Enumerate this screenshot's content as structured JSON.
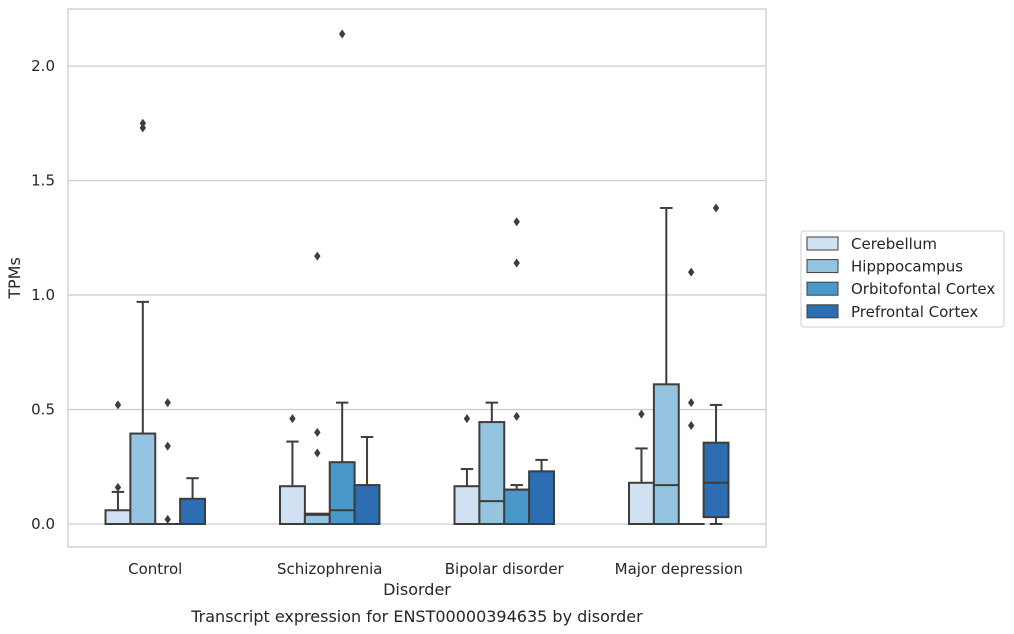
{
  "chart_data": {
    "type": "box",
    "title": "",
    "caption": "Transcript expression for ENST00000394635 by disorder",
    "xlabel": "Disorder",
    "ylabel": "TPMs",
    "ylim": [
      -0.1,
      2.25
    ],
    "yticks": [
      "0.0",
      "0.5",
      "1.0",
      "1.5",
      "2.0"
    ],
    "ytick_values": [
      0.0,
      0.5,
      1.0,
      1.5,
      2.0
    ],
    "grid": true,
    "legend_position": "right",
    "categories": [
      "Control",
      "Schizophrenia",
      "Bipolar disorder",
      "Major depression"
    ],
    "series": [
      {
        "name": "Cerebellum",
        "color": "#d0e1f2",
        "boxes": [
          {
            "q1": 0.0,
            "median": 0.0,
            "q3": 0.06,
            "whisker_low": 0.0,
            "whisker_high": 0.14,
            "outliers": [
              0.16,
              0.52
            ]
          },
          {
            "q1": 0.0,
            "median": 0.0,
            "q3": 0.165,
            "whisker_low": 0.0,
            "whisker_high": 0.36,
            "outliers": [
              0.46
            ]
          },
          {
            "q1": 0.0,
            "median": 0.0,
            "q3": 0.165,
            "whisker_low": 0.0,
            "whisker_high": 0.24,
            "outliers": [
              0.46
            ]
          },
          {
            "q1": 0.0,
            "median": 0.0,
            "q3": 0.18,
            "whisker_low": 0.0,
            "whisker_high": 0.33,
            "outliers": [
              0.48
            ]
          }
        ]
      },
      {
        "name": "Hipppocampus",
        "color": "#94c4df",
        "boxes": [
          {
            "q1": 0.0,
            "median": 0.0,
            "q3": 0.395,
            "whisker_low": 0.0,
            "whisker_high": 0.97,
            "outliers": [
              1.73,
              1.75
            ]
          },
          {
            "q1": 0.0,
            "median": 0.04,
            "q3": 0.045,
            "whisker_low": 0.0,
            "whisker_high": 0.045,
            "outliers": [
              0.31,
              0.4,
              1.17
            ]
          },
          {
            "q1": 0.0,
            "median": 0.1,
            "q3": 0.445,
            "whisker_low": 0.0,
            "whisker_high": 0.53,
            "outliers": []
          },
          {
            "q1": 0.0,
            "median": 0.17,
            "q3": 0.61,
            "whisker_low": 0.0,
            "whisker_high": 1.38,
            "outliers": []
          }
        ]
      },
      {
        "name": "Orbitofontal Cortex",
        "color": "#4a98c9",
        "boxes": [
          {
            "q1": 0.0,
            "median": 0.0,
            "q3": 0.0,
            "whisker_low": 0.0,
            "whisker_high": 0.0,
            "outliers": [
              0.02,
              0.34,
              0.53
            ]
          },
          {
            "q1": 0.0,
            "median": 0.06,
            "q3": 0.27,
            "whisker_low": 0.0,
            "whisker_high": 0.53,
            "outliers": [
              2.14
            ]
          },
          {
            "q1": 0.0,
            "median": 0.15,
            "q3": 0.15,
            "whisker_low": 0.0,
            "whisker_high": 0.17,
            "outliers": [
              0.47,
              1.14,
              1.32
            ]
          },
          {
            "q1": 0.0,
            "median": 0.0,
            "q3": 0.0,
            "whisker_low": 0.0,
            "whisker_high": 0.0,
            "outliers": [
              0.43,
              0.53,
              1.1
            ]
          }
        ]
      },
      {
        "name": "Prefrontal Cortex",
        "color": "#2b6eb1",
        "boxes": [
          {
            "q1": 0.0,
            "median": 0.0,
            "q3": 0.11,
            "whisker_low": 0.0,
            "whisker_high": 0.2,
            "outliers": []
          },
          {
            "q1": 0.0,
            "median": 0.0,
            "q3": 0.17,
            "whisker_low": 0.0,
            "whisker_high": 0.38,
            "outliers": []
          },
          {
            "q1": 0.0,
            "median": 0.0,
            "q3": 0.23,
            "whisker_low": 0.0,
            "whisker_high": 0.28,
            "outliers": []
          },
          {
            "q1": 0.03,
            "median": 0.18,
            "q3": 0.355,
            "whisker_low": 0.0,
            "whisker_high": 0.52,
            "outliers": [
              1.38
            ]
          }
        ]
      }
    ]
  },
  "colors": {
    "box_edge": "#3d3d3d",
    "grid": "#cccccc",
    "frame": "#cccccc",
    "text": "#262626"
  }
}
